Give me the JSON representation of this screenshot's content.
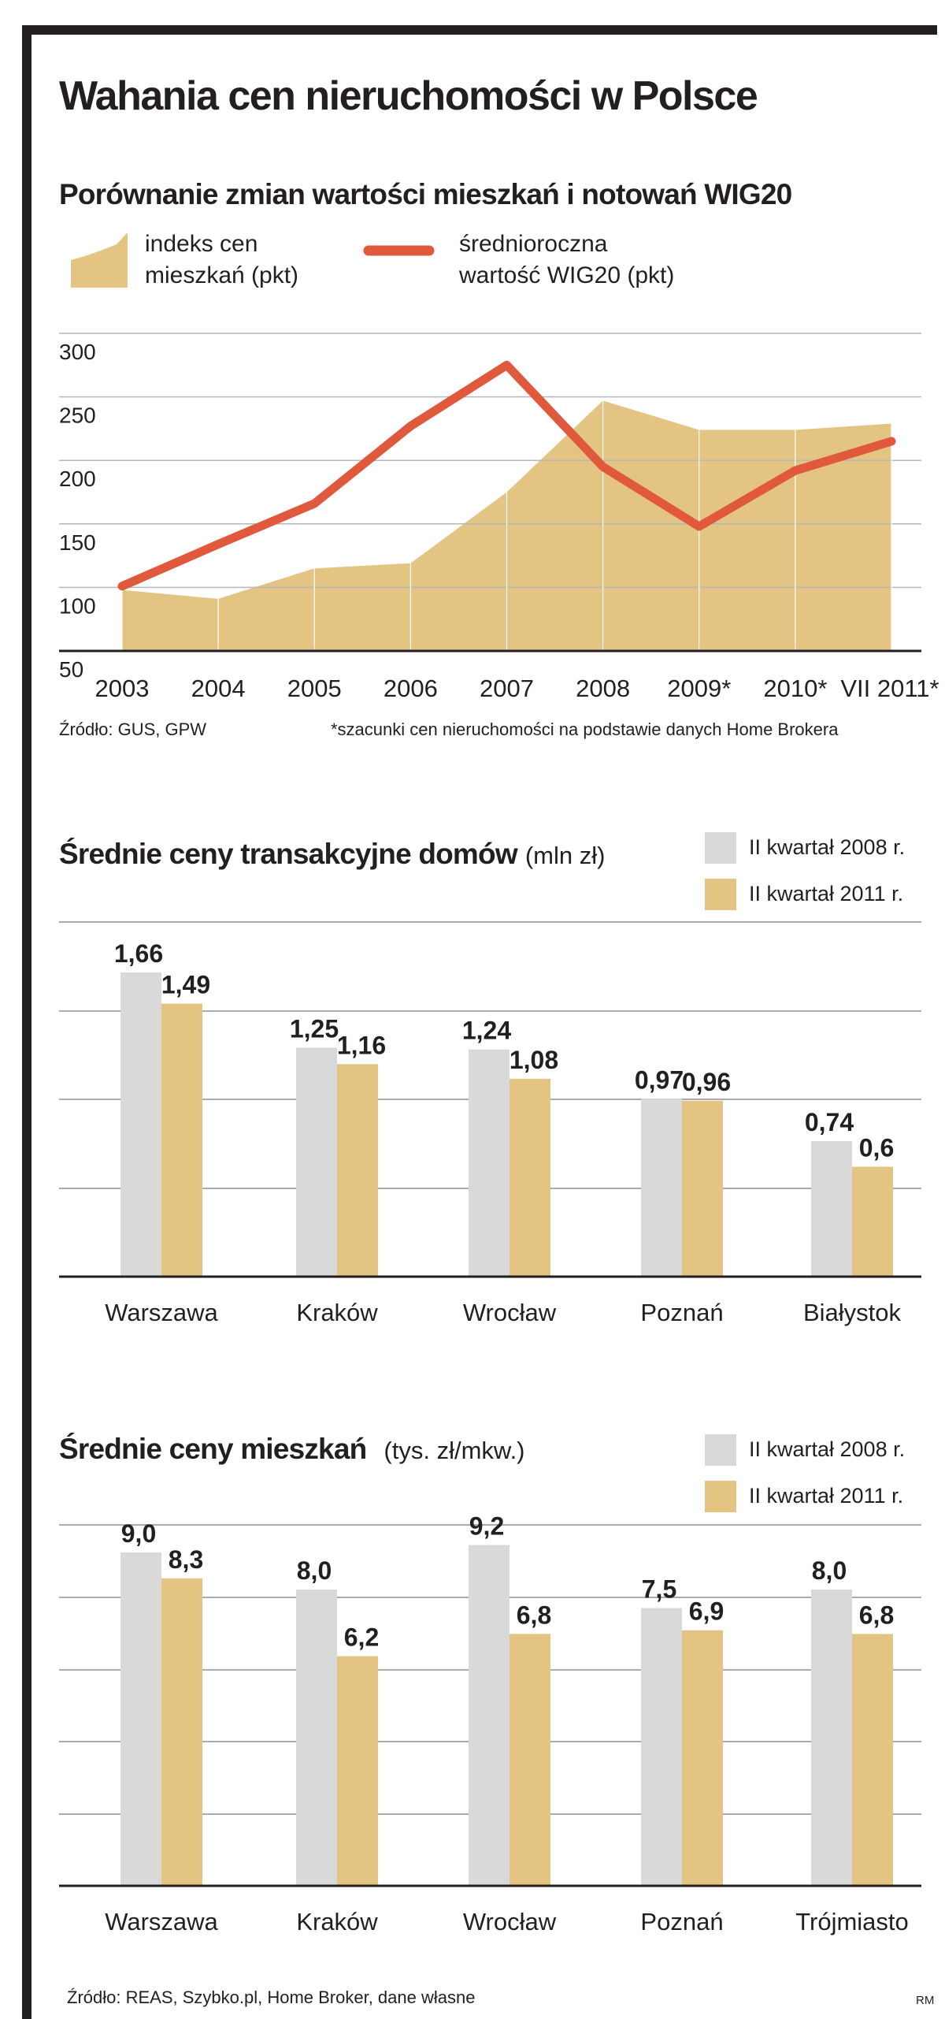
{
  "title": "Wahania cen nieruchomości w Polsce",
  "colors": {
    "gold": "#e3c483",
    "grey": "#d9d9d9",
    "line": "#e0593c",
    "ink": "#231f20"
  },
  "chart1": {
    "subtitle": "Porównanie zmian wartości mieszkań i notowań WIG20",
    "legend_area_line1": "indeks cen",
    "legend_area_line2": "mieszkań (pkt)",
    "legend_line_line1": "średnioroczna",
    "legend_line_line2": "wartość WIG20 (pkt)",
    "source": "Źródło: GUS, GPW",
    "footnote": "*szacunki cen nieruchomości na podstawie danych Home Brokera"
  },
  "chart2": {
    "title": "Średnie ceny transakcyjne domów",
    "unit": "(mln zł)",
    "legend1": "II kwartał 2008 r.",
    "legend2": "II kwartał 2011 r."
  },
  "chart3": {
    "title": "Średnie ceny mieszkań",
    "unit": "(tys. zł/mkw.)",
    "legend1": "II kwartał 2008 r.",
    "legend2": "II kwartał 2011 r.",
    "source": "Źródło: REAS, Szybko.pl, Home Broker, dane własne",
    "credit": "RM"
  },
  "chart_data": [
    {
      "type": "area",
      "title": "Porównanie zmian wartości mieszkań i notowań WIG20",
      "x": [
        "2003",
        "2004",
        "2005",
        "2006",
        "2007",
        "2008",
        "2009*",
        "2010*",
        "VII 2011*"
      ],
      "yticks": [
        "300",
        "250",
        "200",
        "150",
        "100",
        "50"
      ],
      "ylim": [
        50,
        300
      ],
      "grid": true,
      "series": [
        {
          "name": "indeks cen mieszkań (pkt)",
          "type": "area",
          "values": [
            98,
            91,
            115,
            119,
            175,
            247,
            224,
            224,
            229
          ]
        },
        {
          "name": "średnioroczna wartość WIG20 (pkt)",
          "type": "line",
          "values": [
            101,
            134,
            166,
            227,
            275,
            195,
            148,
            192,
            215
          ]
        }
      ]
    },
    {
      "type": "bar",
      "title": "Średnie ceny transakcyjne domów",
      "categories": [
        "Warszawa",
        "Kraków",
        "Wrocław",
        "Poznań",
        "Białystok"
      ],
      "ylim": [
        0,
        2.0
      ],
      "grid": true,
      "series": [
        {
          "name": "II kwartał 2008 r.",
          "values": [
            1.66,
            1.25,
            1.24,
            0.97,
            0.74
          ],
          "labels": [
            "1,66",
            "1,25",
            "1,24",
            "0,97",
            "0,74"
          ]
        },
        {
          "name": "II kwartał 2011 r.",
          "values": [
            1.49,
            1.16,
            1.08,
            0.96,
            0.6
          ],
          "labels": [
            "1,49",
            "1,16",
            "1,08",
            "0,96",
            "0,6"
          ]
        }
      ]
    },
    {
      "type": "bar",
      "title": "Średnie ceny mieszkań",
      "categories": [
        "Warszawa",
        "Kraków",
        "Wrocław",
        "Poznań",
        "Trójmiasto"
      ],
      "ylim": [
        0,
        10
      ],
      "grid": true,
      "series": [
        {
          "name": "II kwartał 2008 r.",
          "values": [
            9.0,
            8.0,
            9.2,
            7.5,
            8.0
          ],
          "labels": [
            "9,0",
            "8,0",
            "9,2",
            "7,5",
            "8,0"
          ]
        },
        {
          "name": "II kwartał 2011 r.",
          "values": [
            8.3,
            6.2,
            6.8,
            6.9,
            6.8
          ],
          "labels": [
            "8,3",
            "6,2",
            "6,8",
            "6,9",
            "6,8"
          ]
        }
      ]
    }
  ]
}
